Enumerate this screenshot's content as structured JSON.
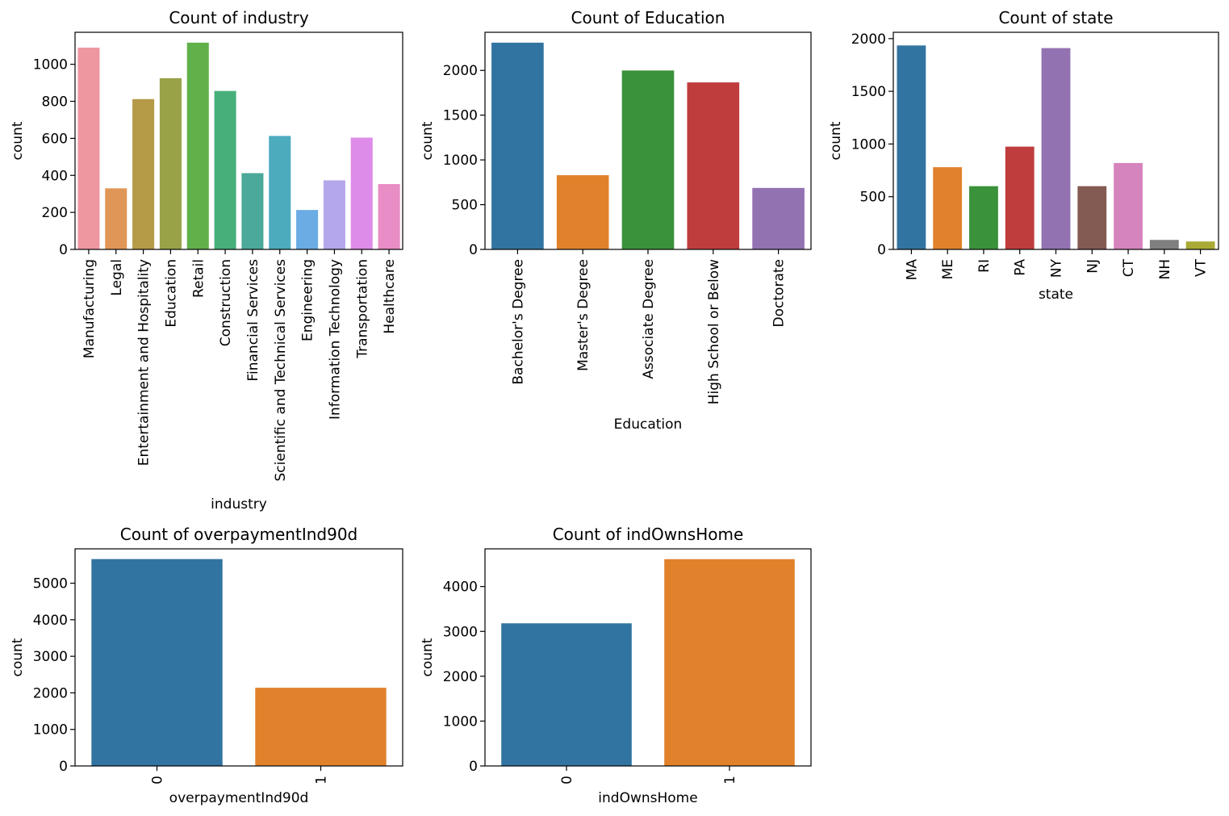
{
  "figure": {
    "background": "#ffffff"
  },
  "chart_data": [
    {
      "type": "bar",
      "title": "Count of industry",
      "xlabel": "industry",
      "ylabel": "count",
      "rotate_labels": true,
      "categories": [
        "Manufacturing",
        "Legal",
        "Entertainment and Hospitality",
        "Education",
        "Retail",
        "Construction",
        "Financial Services",
        "Scientific and Technical Services",
        "Engineering",
        "Information Technology",
        "Transportation",
        "Healthcare"
      ],
      "values": [
        1090,
        330,
        812,
        925,
        1117,
        856,
        412,
        613,
        213,
        373,
        604,
        353
      ],
      "colors": [
        "#ee97a0",
        "#e09656",
        "#b59a47",
        "#99a247",
        "#61b14a",
        "#47b07a",
        "#4aa99a",
        "#4dabbe",
        "#6aace3",
        "#b5a7eb",
        "#de8ce9",
        "#e88dc5"
      ],
      "ylim": [
        0,
        1173
      ],
      "yticks": [
        0,
        200,
        400,
        600,
        800,
        1000
      ]
    },
    {
      "type": "bar",
      "title": "Count of Education",
      "xlabel": "Education",
      "ylabel": "count",
      "rotate_labels": true,
      "categories": [
        "Bachelor's Degree",
        "Master's Degree",
        "Associate Degree",
        "High School or Below",
        "Doctorate"
      ],
      "values": [
        2310,
        829,
        1999,
        1866,
        687
      ],
      "colors": [
        "#3274a1",
        "#e1812c",
        "#3a923a",
        "#c03d3e",
        "#9372b2"
      ],
      "ylim": [
        0,
        2426
      ],
      "yticks": [
        0,
        500,
        1000,
        1500,
        2000
      ]
    },
    {
      "type": "bar",
      "title": "Count of state",
      "xlabel": "state",
      "ylabel": "count",
      "rotate_labels": true,
      "categories": [
        "MA",
        "ME",
        "RI",
        "PA",
        "NY",
        "NJ",
        "CT",
        "NH",
        "VT"
      ],
      "values": [
        1935,
        780,
        600,
        975,
        1910,
        600,
        820,
        90,
        75
      ],
      "colors": [
        "#3274a1",
        "#e1812c",
        "#3a923a",
        "#c03d3e",
        "#9372b2",
        "#845b53",
        "#d684bd",
        "#7f7f7f",
        "#a9aa35"
      ],
      "ylim": [
        0,
        2060
      ],
      "yticks": [
        0,
        500,
        1000,
        1500,
        2000
      ]
    },
    {
      "type": "bar",
      "title": "Count of overpaymentInd90d",
      "xlabel": "overpaymentInd90d",
      "ylabel": "count",
      "rotate_labels": true,
      "categories": [
        "0",
        "1"
      ],
      "values": [
        5660,
        2140
      ],
      "colors": [
        "#3274a1",
        "#e1812c"
      ],
      "ylim": [
        0,
        5940
      ],
      "yticks": [
        0,
        1000,
        2000,
        3000,
        4000,
        5000
      ]
    },
    {
      "type": "bar",
      "title": "Count of indOwnsHome",
      "xlabel": "indOwnsHome",
      "ylabel": "count",
      "rotate_labels": true,
      "categories": [
        "0",
        "1"
      ],
      "values": [
        3180,
        4610
      ],
      "colors": [
        "#3274a1",
        "#e1812c"
      ],
      "ylim": [
        0,
        4840
      ],
      "yticks": [
        0,
        1000,
        2000,
        3000,
        4000
      ]
    }
  ]
}
